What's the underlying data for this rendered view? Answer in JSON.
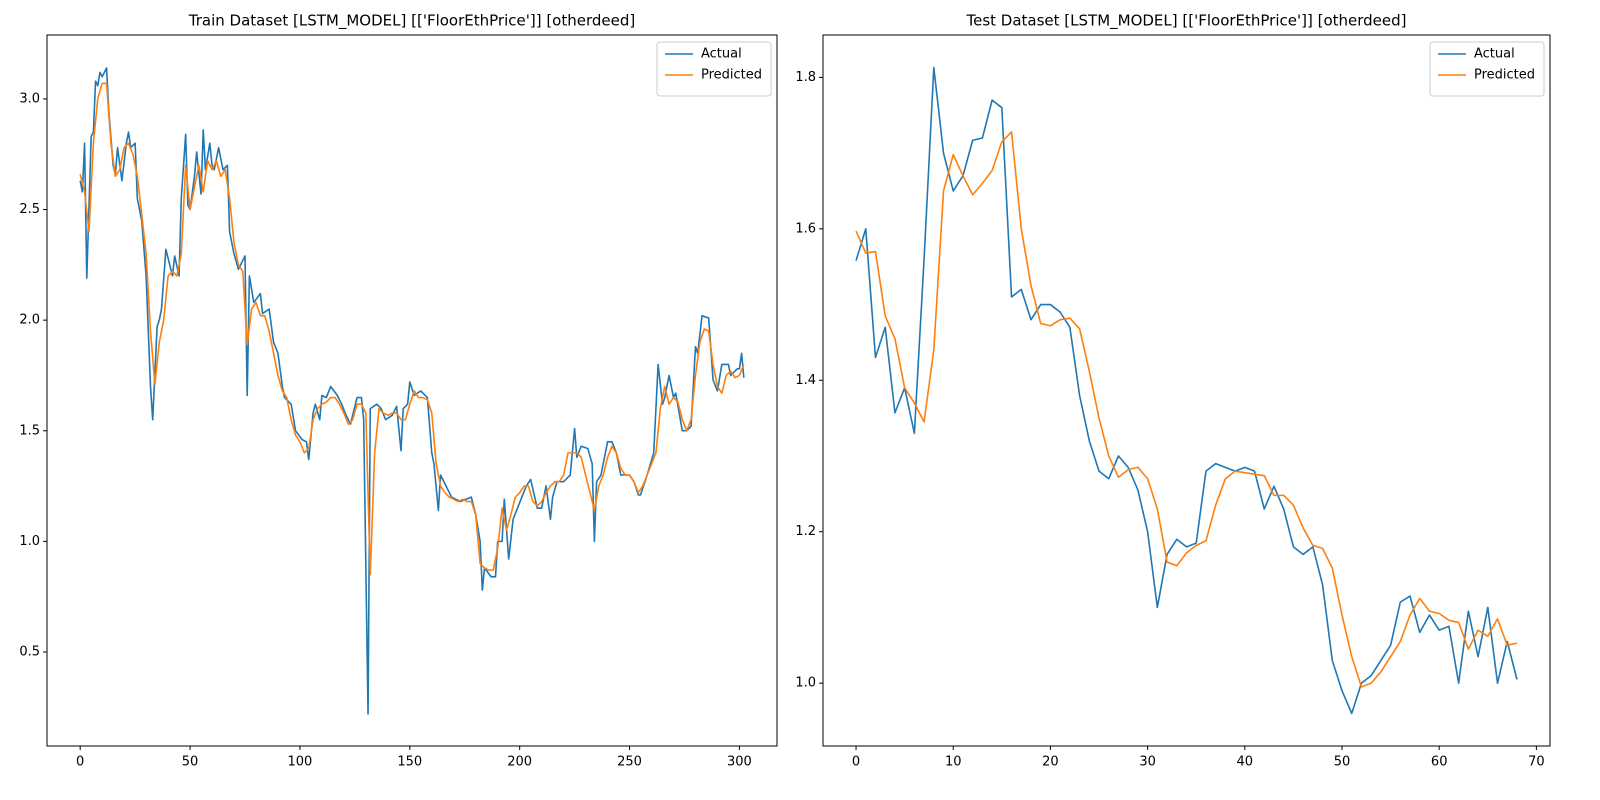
{
  "chart_data": [
    {
      "type": "line",
      "title": "Train Dataset [LSTM_MODEL] [['FloorEthPrice']] [otherdeed]",
      "xlim": [
        -15.1,
        317.1
      ],
      "ylim": [
        0.075,
        3.289
      ],
      "xticks": [
        0,
        50,
        100,
        150,
        200,
        250,
        300
      ],
      "yticks": [
        0.5,
        {
          "value": 1.0,
          "label": "1.0"
        },
        1.5,
        {
          "value": 2.0,
          "label": "2.0"
        },
        2.5,
        {
          "value": 3.0,
          "label": "3.0"
        }
      ],
      "legend": "upper right",
      "series": [
        {
          "name": "Actual",
          "color": "#1f77b4",
          "x": [
            0,
            1,
            2,
            3,
            5,
            6,
            7,
            8,
            9,
            10,
            12,
            13,
            15,
            16,
            17,
            19,
            21,
            22,
            23,
            25,
            26,
            28,
            30,
            32,
            33,
            35,
            36,
            37,
            39,
            40,
            42,
            43,
            45,
            46,
            48,
            49,
            50,
            52,
            53,
            55,
            56,
            57,
            59,
            60,
            61,
            63,
            65,
            67,
            68,
            70,
            72,
            74,
            75,
            76,
            77,
            79,
            82,
            83,
            86,
            88,
            90,
            92,
            93,
            96,
            98,
            101,
            103,
            104,
            106,
            107,
            109,
            110,
            112,
            114,
            117,
            119,
            121,
            123,
            126,
            128,
            129,
            131,
            132,
            135,
            137,
            139,
            142,
            144,
            146,
            147,
            149,
            150,
            152,
            155,
            158,
            160,
            161,
            163,
            164,
            169,
            173,
            178,
            180,
            182,
            183,
            184,
            187,
            189,
            190,
            192,
            193,
            195,
            197,
            199,
            201,
            203,
            205,
            208,
            210,
            212,
            214,
            215,
            217,
            220,
            223,
            225,
            226,
            228,
            231,
            233,
            234,
            235,
            237,
            240,
            242,
            244,
            246,
            250,
            252,
            254,
            255,
            258,
            261,
            263,
            265,
            266,
            268,
            270,
            271,
            274,
            276,
            278,
            280,
            281,
            283,
            286,
            288,
            290,
            292,
            295,
            296,
            299,
            300,
            301,
            302
          ],
          "values": [
            2.63,
            2.58,
            2.8,
            2.19,
            2.83,
            2.85,
            3.08,
            3.06,
            3.12,
            3.1,
            3.14,
            2.95,
            2.7,
            2.66,
            2.78,
            2.63,
            2.8,
            2.85,
            2.78,
            2.8,
            2.55,
            2.45,
            2.2,
            1.7,
            1.55,
            1.97,
            2.0,
            2.05,
            2.32,
            2.28,
            2.2,
            2.29,
            2.2,
            2.55,
            2.84,
            2.52,
            2.5,
            2.65,
            2.76,
            2.57,
            2.86,
            2.68,
            2.8,
            2.7,
            2.68,
            2.78,
            2.68,
            2.7,
            2.4,
            2.3,
            2.23,
            2.27,
            2.29,
            1.66,
            2.2,
            2.08,
            2.12,
            2.03,
            2.05,
            1.9,
            1.85,
            1.7,
            1.65,
            1.62,
            1.5,
            1.46,
            1.45,
            1.37,
            1.58,
            1.62,
            1.55,
            1.66,
            1.65,
            1.7,
            1.66,
            1.62,
            1.57,
            1.53,
            1.65,
            1.65,
            1.55,
            0.22,
            1.6,
            1.62,
            1.6,
            1.55,
            1.57,
            1.61,
            1.41,
            1.6,
            1.62,
            1.72,
            1.66,
            1.68,
            1.65,
            1.4,
            1.35,
            1.14,
            1.3,
            1.2,
            1.18,
            1.2,
            1.12,
            1.0,
            0.78,
            0.88,
            0.84,
            0.84,
            1.0,
            1.0,
            1.19,
            0.92,
            1.1,
            1.15,
            1.2,
            1.25,
            1.28,
            1.15,
            1.15,
            1.25,
            1.1,
            1.2,
            1.27,
            1.27,
            1.3,
            1.51,
            1.38,
            1.43,
            1.42,
            1.35,
            1.0,
            1.27,
            1.3,
            1.45,
            1.45,
            1.4,
            1.3,
            1.3,
            1.27,
            1.21,
            1.21,
            1.3,
            1.4,
            1.8,
            1.62,
            1.65,
            1.75,
            1.65,
            1.67,
            1.5,
            1.5,
            1.52,
            1.88,
            1.85,
            2.02,
            2.01,
            1.73,
            1.68,
            1.8,
            1.8,
            1.75,
            1.78,
            1.78,
            1.85,
            1.74
          ]
        },
        {
          "name": "Predicted",
          "color": "#ff7f0e",
          "x": [
            0,
            2,
            4,
            6,
            8,
            10,
            12,
            14,
            16,
            18,
            20,
            22,
            24,
            26,
            28,
            30,
            32,
            34,
            36,
            38,
            40,
            42,
            44,
            46,
            48,
            50,
            52,
            54,
            56,
            58,
            60,
            62,
            64,
            66,
            68,
            70,
            72,
            74,
            76,
            78,
            80,
            82,
            84,
            86,
            88,
            90,
            92,
            94,
            96,
            98,
            100,
            102,
            104,
            106,
            108,
            110,
            112,
            114,
            116,
            118,
            120,
            122,
            124,
            126,
            128,
            130,
            132,
            134,
            136,
            138,
            140,
            142,
            144,
            146,
            148,
            150,
            152,
            154,
            156,
            158,
            160,
            162,
            164,
            166,
            168,
            170,
            172,
            174,
            176,
            178,
            180,
            182,
            184,
            186,
            188,
            190,
            192,
            194,
            196,
            198,
            200,
            202,
            204,
            206,
            208,
            210,
            212,
            214,
            216,
            218,
            220,
            222,
            224,
            226,
            228,
            230,
            232,
            234,
            236,
            238,
            240,
            242,
            244,
            246,
            248,
            250,
            252,
            254,
            256,
            258,
            260,
            262,
            264,
            266,
            268,
            270,
            272,
            274,
            276,
            278,
            280,
            282,
            284,
            286,
            288,
            290,
            292,
            294,
            296,
            298,
            300,
            302
          ],
          "values": [
            2.66,
            2.58,
            2.4,
            2.8,
            3.0,
            3.07,
            3.07,
            2.8,
            2.65,
            2.68,
            2.78,
            2.8,
            2.75,
            2.65,
            2.48,
            2.3,
            1.95,
            1.71,
            1.9,
            2.0,
            2.2,
            2.22,
            2.2,
            2.3,
            2.7,
            2.5,
            2.6,
            2.7,
            2.58,
            2.72,
            2.68,
            2.72,
            2.65,
            2.68,
            2.55,
            2.35,
            2.25,
            2.22,
            1.89,
            2.05,
            2.08,
            2.02,
            2.02,
            1.95,
            1.85,
            1.75,
            1.68,
            1.65,
            1.55,
            1.48,
            1.45,
            1.4,
            1.42,
            1.55,
            1.6,
            1.62,
            1.63,
            1.65,
            1.65,
            1.62,
            1.58,
            1.53,
            1.55,
            1.62,
            1.62,
            1.58,
            0.85,
            1.4,
            1.6,
            1.58,
            1.57,
            1.58,
            1.58,
            1.55,
            1.55,
            1.62,
            1.68,
            1.65,
            1.65,
            1.64,
            1.58,
            1.35,
            1.25,
            1.22,
            1.2,
            1.19,
            1.18,
            1.19,
            1.18,
            1.18,
            1.12,
            0.9,
            0.88,
            0.87,
            0.87,
            0.97,
            1.15,
            1.05,
            1.12,
            1.2,
            1.22,
            1.25,
            1.25,
            1.18,
            1.16,
            1.18,
            1.22,
            1.25,
            1.27,
            1.27,
            1.3,
            1.4,
            1.4,
            1.4,
            1.38,
            1.3,
            1.22,
            1.14,
            1.25,
            1.3,
            1.38,
            1.43,
            1.4,
            1.33,
            1.3,
            1.3,
            1.27,
            1.22,
            1.25,
            1.3,
            1.35,
            1.4,
            1.6,
            1.7,
            1.62,
            1.65,
            1.63,
            1.55,
            1.5,
            1.55,
            1.75,
            1.9,
            1.96,
            1.95,
            1.8,
            1.7,
            1.67,
            1.75,
            1.77,
            1.74,
            1.75,
            1.8
          ]
        }
      ]
    },
    {
      "type": "line",
      "title": "Test Dataset [LSTM_MODEL] [['FloorEthPrice']] [otherdeed]",
      "xlim": [
        -3.4,
        71.4
      ],
      "ylim": [
        0.917,
        1.856
      ],
      "xticks": [
        0,
        10,
        20,
        30,
        40,
        50,
        60,
        70
      ],
      "yticks": [
        {
          "value": 1.0,
          "label": "1.0"
        },
        1.2,
        1.4,
        1.6,
        1.8
      ],
      "legend": "upper right",
      "x": [
        0,
        1,
        2,
        3,
        4,
        5,
        6,
        7,
        8,
        9,
        10,
        11,
        12,
        13,
        14,
        15,
        16,
        17,
        18,
        19,
        20,
        21,
        22,
        23,
        24,
        25,
        26,
        27,
        28,
        29,
        30,
        31,
        32,
        33,
        34,
        35,
        36,
        37,
        38,
        39,
        40,
        41,
        42,
        43,
        44,
        45,
        46,
        47,
        48,
        49,
        50,
        51,
        52,
        53,
        54,
        55,
        56,
        57,
        58,
        59,
        60,
        61,
        62,
        63,
        64,
        65,
        66,
        67,
        68
      ],
      "series": [
        {
          "name": "Actual",
          "color": "#1f77b4",
          "values": [
            1.558,
            1.6,
            1.43,
            1.47,
            1.357,
            1.39,
            1.33,
            1.56,
            1.813,
            1.7,
            1.65,
            1.67,
            1.717,
            1.72,
            1.77,
            1.76,
            1.51,
            1.52,
            1.48,
            1.5,
            1.5,
            1.49,
            1.47,
            1.38,
            1.32,
            1.28,
            1.27,
            1.3,
            1.285,
            1.255,
            1.2,
            1.1,
            1.17,
            1.19,
            1.18,
            1.185,
            1.28,
            1.29,
            1.285,
            1.28,
            1.285,
            1.28,
            1.23,
            1.26,
            1.23,
            1.18,
            1.17,
            1.18,
            1.13,
            1.03,
            0.99,
            0.96,
            1.0,
            1.01,
            1.03,
            1.05,
            1.107,
            1.115,
            1.067,
            1.09,
            1.07,
            1.075,
            1.0,
            1.095,
            1.035,
            1.1,
            1.0,
            1.055,
            1.005
          ]
        },
        {
          "name": "Predicted",
          "color": "#ff7f0e",
          "values": [
            1.597,
            1.568,
            1.57,
            1.485,
            1.455,
            1.39,
            1.37,
            1.345,
            1.44,
            1.65,
            1.698,
            1.67,
            1.645,
            1.66,
            1.677,
            1.715,
            1.728,
            1.6,
            1.525,
            1.475,
            1.472,
            1.48,
            1.482,
            1.468,
            1.412,
            1.35,
            1.3,
            1.272,
            1.282,
            1.285,
            1.27,
            1.23,
            1.16,
            1.155,
            1.172,
            1.182,
            1.188,
            1.235,
            1.27,
            1.28,
            1.278,
            1.276,
            1.274,
            1.248,
            1.248,
            1.235,
            1.205,
            1.182,
            1.178,
            1.152,
            1.09,
            1.035,
            0.995,
            1.0,
            1.015,
            1.035,
            1.055,
            1.09,
            1.112,
            1.095,
            1.092,
            1.083,
            1.08,
            1.045,
            1.07,
            1.062,
            1.085,
            1.05,
            1.053
          ]
        }
      ]
    }
  ]
}
